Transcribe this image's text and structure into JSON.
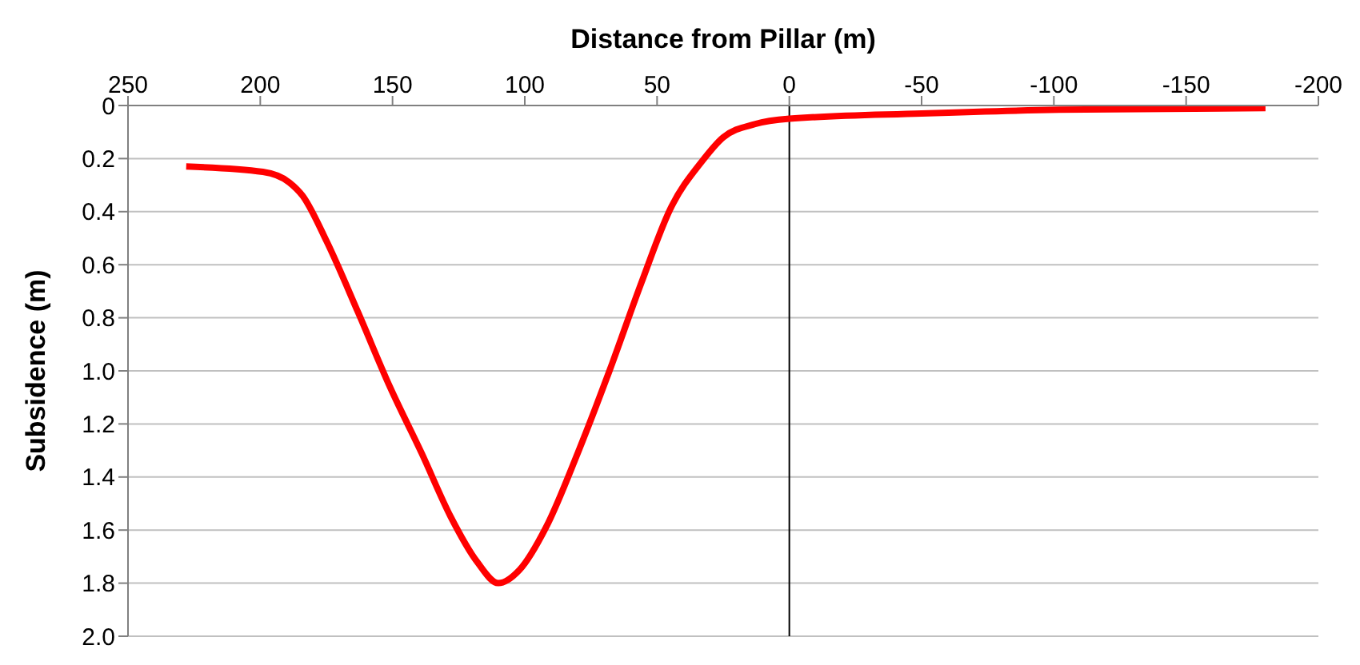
{
  "chart_data": {
    "type": "line",
    "xlabel": "Distance from Pillar (m)",
    "ylabel": "Subsidence (m)",
    "xlim": [
      250,
      -200
    ],
    "xticks": [
      250,
      200,
      150,
      100,
      50,
      0,
      -50,
      -100,
      -150,
      -200
    ],
    "ylim": [
      2.0,
      0
    ],
    "yticks": [
      0,
      0.2,
      0.4,
      0.6,
      0.8,
      {
        "value": 1,
        "label": "1.0"
      },
      1.2,
      1.4,
      1.6,
      1.8,
      {
        "value": 2,
        "label": "2.0"
      }
    ],
    "grid": "y",
    "marker": "none",
    "line_style": "solid",
    "ref_lines": [
      {
        "axis": "x",
        "value": 0,
        "color": "#000000"
      }
    ],
    "series": [
      {
        "color": "#ff0000",
        "x": [
          228,
          199,
          189,
          184,
          175,
          163,
          151,
          139,
          128,
          118,
          110,
          102,
          92,
          80,
          68,
          56,
          45,
          33,
          25,
          13,
          0,
          -50,
          -102,
          -180
        ],
        "values": [
          0.23,
          0.25,
          0.29,
          0.34,
          0.51,
          0.78,
          1.06,
          1.31,
          1.55,
          1.72,
          1.8,
          1.75,
          1.59,
          1.31,
          1.0,
          0.67,
          0.39,
          0.21,
          0.12,
          0.07,
          0.05,
          0.03,
          0.016,
          0.01
        ]
      }
    ]
  }
}
